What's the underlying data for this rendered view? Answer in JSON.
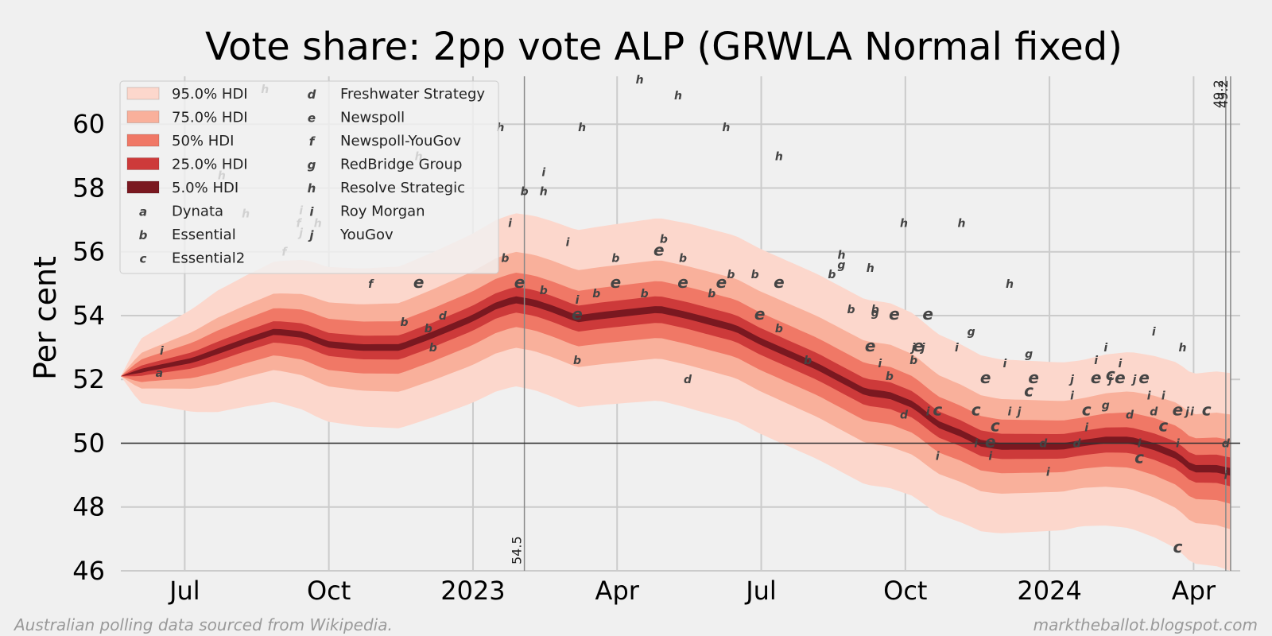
{
  "chart_data": {
    "type": "area",
    "title": "Vote share: 2pp vote ALP (GRWLA Normal fixed)",
    "xlabel": "",
    "ylabel": "Per cent",
    "ylim": [
      46,
      61.5
    ],
    "xlim_months": [
      0,
      23.3
    ],
    "x_origin": "2022-05-21",
    "grid": true,
    "xticks": [
      {
        "label": "Jul",
        "pos": 1.33
      },
      {
        "label": "Oct",
        "pos": 4.33
      },
      {
        "label": "2023",
        "pos": 7.33
      },
      {
        "label": "Apr",
        "pos": 10.33
      },
      {
        "label": "Jul",
        "pos": 13.33
      },
      {
        "label": "Oct",
        "pos": 16.33
      },
      {
        "label": "2024",
        "pos": 19.33
      },
      {
        "label": "Apr",
        "pos": 22.33
      }
    ],
    "yticks": [
      46,
      48,
      50,
      52,
      54,
      56,
      58,
      60
    ],
    "reference_line": 50,
    "median": [
      [
        0,
        52.1
      ],
      [
        0.5,
        52.3
      ],
      [
        1.5,
        52.6
      ],
      [
        2.6,
        53.2
      ],
      [
        3.2,
        53.5
      ],
      [
        3.8,
        53.4
      ],
      [
        4.3,
        53.1
      ],
      [
        5,
        53.0
      ],
      [
        5.8,
        53.0
      ],
      [
        6.5,
        53.4
      ],
      [
        7.3,
        53.9
      ],
      [
        7.8,
        54.3
      ],
      [
        8.2,
        54.5
      ],
      [
        8.6,
        54.4
      ],
      [
        9.0,
        54.2
      ],
      [
        9.5,
        53.9
      ],
      [
        10.0,
        54.0
      ],
      [
        10.6,
        54.1
      ],
      [
        11.2,
        54.2
      ],
      [
        11.8,
        54.0
      ],
      [
        12.3,
        53.8
      ],
      [
        12.8,
        53.6
      ],
      [
        13.3,
        53.2
      ],
      [
        13.9,
        52.8
      ],
      [
        14.5,
        52.4
      ],
      [
        15.0,
        52.0
      ],
      [
        15.5,
        51.6
      ],
      [
        16.0,
        51.5
      ],
      [
        16.5,
        51.2
      ],
      [
        17.0,
        50.6
      ],
      [
        17.5,
        50.3
      ],
      [
        17.9,
        50.0
      ],
      [
        18.3,
        49.9
      ],
      [
        18.8,
        49.9
      ],
      [
        19.2,
        49.9
      ],
      [
        19.6,
        49.9
      ],
      [
        20.0,
        50.0
      ],
      [
        20.5,
        50.1
      ],
      [
        21.0,
        50.1
      ],
      [
        21.5,
        49.9
      ],
      [
        22.0,
        49.6
      ],
      [
        22.3,
        49.2
      ],
      [
        22.8,
        49.2
      ],
      [
        23.1,
        49.1
      ]
    ],
    "hdi_bands": [
      {
        "label": "95.0% HDI",
        "color": "#fcd7cc",
        "width": [
          [
            0,
            0
          ],
          [
            0.4,
            1.0
          ],
          [
            2,
            1.9
          ],
          [
            4,
            2.4
          ],
          [
            8,
            2.7
          ],
          [
            12,
            2.9
          ],
          [
            16,
            2.9
          ],
          [
            20,
            2.6
          ],
          [
            23.1,
            3.1
          ]
        ]
      },
      {
        "label": "75.0% HDI",
        "color": "#f9b09b",
        "width": [
          [
            0,
            0
          ],
          [
            0.4,
            0.55
          ],
          [
            2,
            1.05
          ],
          [
            4,
            1.3
          ],
          [
            8,
            1.5
          ],
          [
            12,
            1.55
          ],
          [
            16,
            1.6
          ],
          [
            20,
            1.4
          ],
          [
            23.1,
            1.8
          ]
        ]
      },
      {
        "label": "50% HDI",
        "color": "#f07866",
        "width": [
          [
            0,
            0
          ],
          [
            0.4,
            0.35
          ],
          [
            2,
            0.65
          ],
          [
            4,
            0.8
          ],
          [
            8,
            0.85
          ],
          [
            12,
            0.9
          ],
          [
            16,
            0.9
          ],
          [
            20,
            0.8
          ],
          [
            23.1,
            1.0
          ]
        ]
      },
      {
        "label": "25.0% HDI",
        "color": "#cd3a3a",
        "width": [
          [
            0,
            0
          ],
          [
            0.4,
            0.16
          ],
          [
            2,
            0.3
          ],
          [
            4,
            0.36
          ],
          [
            8,
            0.4
          ],
          [
            12,
            0.42
          ],
          [
            16,
            0.42
          ],
          [
            20,
            0.38
          ],
          [
            23.1,
            0.45
          ]
        ]
      },
      {
        "label": "5.0% HDI",
        "color": "#7a1820",
        "width": [
          [
            0,
            0
          ],
          [
            0.4,
            0.06
          ],
          [
            2,
            0.09
          ],
          [
            4,
            0.1
          ],
          [
            8,
            0.11
          ],
          [
            12,
            0.11
          ],
          [
            16,
            0.11
          ],
          [
            20,
            0.1
          ],
          [
            23.1,
            0.12
          ]
        ]
      }
    ],
    "vlines": [
      {
        "pos": 8.4,
        "label": "54.5"
      },
      {
        "pos": 23.0,
        "label": "49.2"
      },
      {
        "pos": 23.1,
        "label": "49.2"
      }
    ],
    "legend": {
      "placement": "top-left",
      "bands": [
        "95.0% HDI",
        "75.0% HDI",
        "50% HDI",
        "25.0% HDI",
        "5.0% HDI"
      ],
      "pollsters": [
        {
          "marker": "a",
          "name": "Dynata"
        },
        {
          "marker": "b",
          "name": "Essential"
        },
        {
          "marker": "c",
          "name": "Essential2"
        },
        {
          "marker": "d",
          "name": "Freshwater Strategy"
        },
        {
          "marker": "e",
          "name": "Newspoll"
        },
        {
          "marker": "f",
          "name": "Newspoll-YouGov"
        },
        {
          "marker": "g",
          "name": "RedBridge Group"
        },
        {
          "marker": "h",
          "name": "Resolve Strategic"
        },
        {
          "marker": "i",
          "name": "Roy Morgan"
        },
        {
          "marker": "j",
          "name": "YouGov"
        }
      ]
    },
    "polls": [
      {
        "m": "a",
        "x": 0.8,
        "y": 52.2
      },
      {
        "m": "i",
        "x": 0.85,
        "y": 52.9
      },
      {
        "m": "h",
        "x": 2.1,
        "y": 58.4
      },
      {
        "m": "h",
        "x": 2.6,
        "y": 57.2
      },
      {
        "m": "h",
        "x": 3.0,
        "y": 61.1
      },
      {
        "m": "f",
        "x": 3.4,
        "y": 56.0
      },
      {
        "m": "f",
        "x": 3.7,
        "y": 56.9
      },
      {
        "m": "i",
        "x": 3.75,
        "y": 57.3
      },
      {
        "m": "j",
        "x": 3.75,
        "y": 56.6
      },
      {
        "m": "h",
        "x": 4.1,
        "y": 56.9
      },
      {
        "m": "f",
        "x": 5.2,
        "y": 55.0
      },
      {
        "m": "b",
        "x": 5.9,
        "y": 53.8
      },
      {
        "m": "e",
        "x": 6.2,
        "y": 55.0
      },
      {
        "m": "h",
        "x": 6.2,
        "y": 59.0
      },
      {
        "m": "b",
        "x": 6.4,
        "y": 53.6
      },
      {
        "m": "d",
        "x": 6.7,
        "y": 54.0
      },
      {
        "m": "b",
        "x": 6.5,
        "y": 53.0
      },
      {
        "m": "h",
        "x": 7.9,
        "y": 59.9
      },
      {
        "m": "i",
        "x": 8.1,
        "y": 56.9
      },
      {
        "m": "b",
        "x": 8.0,
        "y": 55.8
      },
      {
        "m": "e",
        "x": 8.3,
        "y": 55.0
      },
      {
        "m": "b",
        "x": 8.4,
        "y": 57.9
      },
      {
        "m": "i",
        "x": 8.8,
        "y": 58.5
      },
      {
        "m": "h",
        "x": 8.8,
        "y": 57.9
      },
      {
        "m": "b",
        "x": 8.8,
        "y": 54.8
      },
      {
        "m": "i",
        "x": 9.3,
        "y": 56.3
      },
      {
        "m": "i",
        "x": 9.5,
        "y": 54.5
      },
      {
        "m": "e",
        "x": 9.5,
        "y": 54.0
      },
      {
        "m": "b",
        "x": 9.5,
        "y": 52.6
      },
      {
        "m": "h",
        "x": 9.6,
        "y": 59.9
      },
      {
        "m": "b",
        "x": 9.9,
        "y": 54.7
      },
      {
        "m": "e",
        "x": 10.3,
        "y": 55.0
      },
      {
        "m": "b",
        "x": 10.3,
        "y": 55.8
      },
      {
        "m": "h",
        "x": 10.8,
        "y": 61.4
      },
      {
        "m": "b",
        "x": 10.9,
        "y": 54.7
      },
      {
        "m": "e",
        "x": 11.2,
        "y": 56.0
      },
      {
        "m": "b",
        "x": 11.3,
        "y": 56.4
      },
      {
        "m": "h",
        "x": 11.6,
        "y": 60.9
      },
      {
        "m": "b",
        "x": 11.7,
        "y": 55.8
      },
      {
        "m": "e",
        "x": 11.7,
        "y": 55.0
      },
      {
        "m": "d",
        "x": 11.8,
        "y": 52.0
      },
      {
        "m": "b",
        "x": 12.3,
        "y": 54.7
      },
      {
        "m": "e",
        "x": 12.5,
        "y": 55.0
      },
      {
        "m": "h",
        "x": 12.6,
        "y": 59.9
      },
      {
        "m": "b",
        "x": 12.7,
        "y": 55.3
      },
      {
        "m": "b",
        "x": 13.2,
        "y": 55.3
      },
      {
        "m": "e",
        "x": 13.3,
        "y": 54.0
      },
      {
        "m": "h",
        "x": 13.7,
        "y": 59.0
      },
      {
        "m": "e",
        "x": 13.7,
        "y": 55.0
      },
      {
        "m": "b",
        "x": 13.7,
        "y": 53.6
      },
      {
        "m": "b",
        "x": 14.3,
        "y": 52.6
      },
      {
        "m": "b",
        "x": 14.8,
        "y": 55.3
      },
      {
        "m": "h",
        "x": 15.0,
        "y": 55.9
      },
      {
        "m": "g",
        "x": 15.0,
        "y": 55.6
      },
      {
        "m": "b",
        "x": 15.2,
        "y": 54.2
      },
      {
        "m": "b",
        "x": 15.7,
        "y": 54.2
      },
      {
        "m": "g",
        "x": 15.7,
        "y": 54.1
      },
      {
        "m": "h",
        "x": 15.6,
        "y": 55.5
      },
      {
        "m": "e",
        "x": 15.6,
        "y": 53.0
      },
      {
        "m": "i",
        "x": 15.8,
        "y": 52.5
      },
      {
        "m": "b",
        "x": 16.0,
        "y": 52.1
      },
      {
        "m": "e",
        "x": 16.1,
        "y": 54.0
      },
      {
        "m": "h",
        "x": 16.3,
        "y": 56.9
      },
      {
        "m": "d",
        "x": 16.3,
        "y": 50.9
      },
      {
        "m": "b",
        "x": 16.5,
        "y": 52.6
      },
      {
        "m": "j",
        "x": 16.5,
        "y": 53.0
      },
      {
        "m": "e",
        "x": 16.6,
        "y": 53.0
      },
      {
        "m": "j",
        "x": 16.7,
        "y": 53.0
      },
      {
        "m": "e",
        "x": 16.8,
        "y": 54.0
      },
      {
        "m": "i",
        "x": 16.8,
        "y": 51.0
      },
      {
        "m": "i",
        "x": 17.4,
        "y": 53.0
      },
      {
        "m": "h",
        "x": 17.5,
        "y": 56.9
      },
      {
        "m": "c",
        "x": 17.0,
        "y": 51.0
      },
      {
        "m": "i",
        "x": 17.0,
        "y": 49.6
      },
      {
        "m": "g",
        "x": 17.7,
        "y": 53.5
      },
      {
        "m": "c",
        "x": 17.8,
        "y": 51.0
      },
      {
        "m": "e",
        "x": 18.0,
        "y": 52.0
      },
      {
        "m": "i",
        "x": 17.8,
        "y": 50.0
      },
      {
        "m": "i",
        "x": 18.1,
        "y": 49.6
      },
      {
        "m": "c",
        "x": 18.2,
        "y": 50.5
      },
      {
        "m": "e",
        "x": 18.1,
        "y": 50.0
      },
      {
        "m": "i",
        "x": 18.4,
        "y": 52.5
      },
      {
        "m": "h",
        "x": 18.5,
        "y": 55.0
      },
      {
        "m": "i",
        "x": 18.5,
        "y": 51.0
      },
      {
        "m": "j",
        "x": 18.7,
        "y": 51.0
      },
      {
        "m": "g",
        "x": 18.9,
        "y": 52.8
      },
      {
        "m": "c",
        "x": 18.9,
        "y": 51.6
      },
      {
        "m": "e",
        "x": 19.0,
        "y": 52.0
      },
      {
        "m": "d",
        "x": 19.2,
        "y": 50.0
      },
      {
        "m": "i",
        "x": 19.3,
        "y": 49.1
      },
      {
        "m": "i",
        "x": 19.8,
        "y": 51.5
      },
      {
        "m": "j",
        "x": 19.8,
        "y": 52.0
      },
      {
        "m": "d",
        "x": 19.9,
        "y": 50.0
      },
      {
        "m": "c",
        "x": 20.1,
        "y": 51.0
      },
      {
        "m": "i",
        "x": 20.1,
        "y": 50.5
      },
      {
        "m": "i",
        "x": 20.3,
        "y": 52.6
      },
      {
        "m": "e",
        "x": 20.3,
        "y": 52.0
      },
      {
        "m": "g",
        "x": 20.5,
        "y": 51.2
      },
      {
        "m": "i",
        "x": 20.5,
        "y": 53.0
      },
      {
        "m": "j",
        "x": 20.6,
        "y": 52.0
      },
      {
        "m": "c",
        "x": 20.6,
        "y": 52.1
      },
      {
        "m": "e",
        "x": 20.8,
        "y": 52.0
      },
      {
        "m": "i",
        "x": 20.8,
        "y": 52.5
      },
      {
        "m": "d",
        "x": 21.0,
        "y": 50.9
      },
      {
        "m": "j",
        "x": 21.1,
        "y": 52.0
      },
      {
        "m": "i",
        "x": 21.2,
        "y": 50.0
      },
      {
        "m": "c",
        "x": 21.2,
        "y": 49.5
      },
      {
        "m": "e",
        "x": 21.3,
        "y": 52.0
      },
      {
        "m": "i",
        "x": 21.4,
        "y": 51.5
      },
      {
        "m": "i",
        "x": 21.5,
        "y": 53.5
      },
      {
        "m": "d",
        "x": 21.5,
        "y": 51.0
      },
      {
        "m": "c",
        "x": 21.7,
        "y": 50.5
      },
      {
        "m": "i",
        "x": 21.7,
        "y": 51.5
      },
      {
        "m": "e",
        "x": 22.0,
        "y": 51.0
      },
      {
        "m": "i",
        "x": 22.0,
        "y": 50.0
      },
      {
        "m": "c",
        "x": 22.0,
        "y": 46.7
      },
      {
        "m": "h",
        "x": 22.1,
        "y": 53.0
      },
      {
        "m": "j",
        "x": 22.2,
        "y": 51.0
      },
      {
        "m": "i",
        "x": 22.3,
        "y": 51.0
      },
      {
        "m": "c",
        "x": 22.6,
        "y": 51.0
      },
      {
        "m": "d",
        "x": 23.0,
        "y": 50.0
      },
      {
        "m": "i",
        "x": 23.0,
        "y": 49.0
      }
    ]
  },
  "footer": {
    "left": "Australian polling data sourced from Wikipedia.",
    "right": "marktheballot.blogspot.com"
  }
}
